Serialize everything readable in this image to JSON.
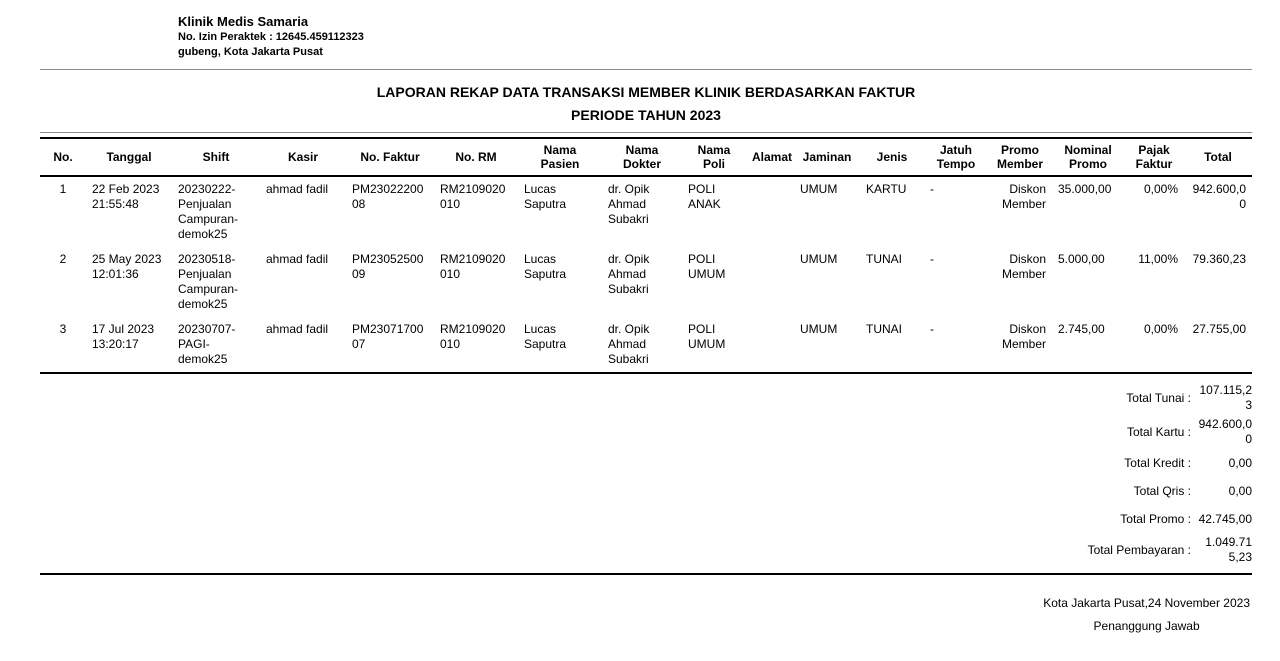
{
  "clinic": {
    "name": "Klinik Medis Samaria",
    "license": "No. Izin Peraktek : 12645.459112323",
    "address": "gubeng, Kota Jakarta Pusat"
  },
  "report": {
    "title": "LAPORAN REKAP DATA TRANSAKSI MEMBER KLINIK BERDASARKAN FAKTUR",
    "period": "PERIODE TAHUN 2023"
  },
  "table": {
    "columns": [
      "No.",
      "Tanggal",
      "Shift",
      "Kasir",
      "No. Faktur",
      "No. RM",
      "Nama Pasien",
      "Nama Dokter",
      "Nama Poli",
      "Alamat",
      "Jaminan",
      "Jenis",
      "Jatuh Tempo",
      "Promo Member",
      "Nominal Promo",
      "Pajak Faktur",
      "Total"
    ],
    "rows": [
      [
        "1",
        "22 Feb 2023 21:55:48",
        "20230222-Penjualan Campuran-demok25",
        "ahmad fadil",
        "PM2302220008",
        "RM2109020010",
        "Lucas Saputra",
        "dr. Opik Ahmad Subakri",
        "POLI ANAK",
        "",
        "UMUM",
        "KARTU",
        "-",
        "Diskon Member",
        "35.000,00",
        "0,00%",
        "942.600,00"
      ],
      [
        "2",
        "25 May 2023 12:01:36",
        "20230518-Penjualan Campuran-demok25",
        "ahmad fadil",
        "PM2305250009",
        "RM2109020010",
        "Lucas Saputra",
        "dr. Opik Ahmad Subakri",
        "POLI UMUM",
        "",
        "UMUM",
        "TUNAI",
        "-",
        "Diskon Member",
        "5.000,00",
        "11,00%",
        "79.360,23"
      ],
      [
        "3",
        "17 Jul 2023 13:20:17",
        "20230707-PAGI-demok25",
        "ahmad fadil",
        "PM2307170007",
        "RM2109020010",
        "Lucas Saputra",
        "dr. Opik Ahmad Subakri",
        "POLI UMUM",
        "",
        "UMUM",
        "TUNAI",
        "-",
        "Diskon Member",
        "2.745,00",
        "0,00%",
        "27.755,00"
      ]
    ]
  },
  "totals": [
    {
      "label": "Total Tunai :",
      "value": "107.115,23"
    },
    {
      "label": "Total Kartu :",
      "value": "942.600,00"
    },
    {
      "label": "Total Kredit :",
      "value": "0,00"
    },
    {
      "label": "Total Qris :",
      "value": "0,00"
    },
    {
      "label": "Total Promo :",
      "value": "42.745,00"
    },
    {
      "label": "Total Pembayaran :",
      "value": "1.049.715,23"
    }
  ],
  "footer": {
    "place_date": "Kota Jakarta Pusat,24 November 2023",
    "signer": "Penanggung Jawab"
  }
}
